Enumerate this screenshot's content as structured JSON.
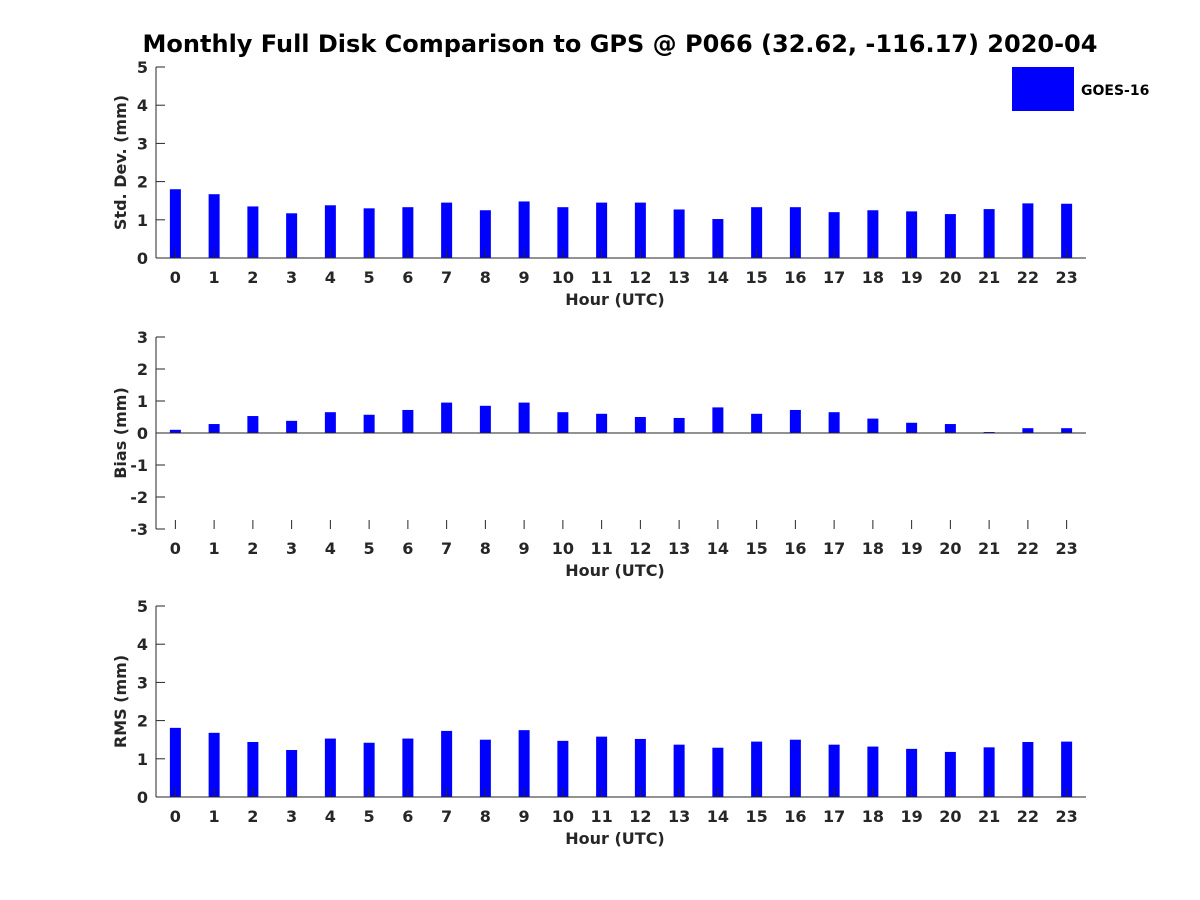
{
  "title": "Monthly Full Disk Comparison to GPS @ P066 (32.62, -116.17) 2020-04",
  "legend": {
    "label": "GOES-16",
    "color": "#0000ff"
  },
  "chart_data": [
    {
      "type": "bar",
      "xlabel": "Hour (UTC)",
      "ylabel": "Std. Dev. (mm)",
      "ylim": [
        0,
        5
      ],
      "yticks": [
        0,
        1,
        2,
        3,
        4,
        5
      ],
      "categories": [
        "0",
        "1",
        "2",
        "3",
        "4",
        "5",
        "6",
        "7",
        "8",
        "9",
        "10",
        "11",
        "12",
        "13",
        "14",
        "15",
        "16",
        "17",
        "18",
        "19",
        "20",
        "21",
        "22",
        "23"
      ],
      "series": [
        {
          "name": "GOES-16",
          "color": "#0000ff",
          "values": [
            1.8,
            1.67,
            1.35,
            1.17,
            1.38,
            1.3,
            1.33,
            1.45,
            1.25,
            1.48,
            1.33,
            1.45,
            1.45,
            1.27,
            1.02,
            1.33,
            1.33,
            1.2,
            1.25,
            1.22,
            1.15,
            1.28,
            1.43,
            1.42
          ]
        }
      ],
      "grid": false
    },
    {
      "type": "bar",
      "xlabel": "Hour (UTC)",
      "ylabel": "Bias (mm)",
      "ylim": [
        -3,
        3
      ],
      "yticks": [
        -3,
        -2,
        -1,
        0,
        1,
        2,
        3
      ],
      "categories": [
        "0",
        "1",
        "2",
        "3",
        "4",
        "5",
        "6",
        "7",
        "8",
        "9",
        "10",
        "11",
        "12",
        "13",
        "14",
        "15",
        "16",
        "17",
        "18",
        "19",
        "20",
        "21",
        "22",
        "23"
      ],
      "series": [
        {
          "name": "GOES-16",
          "color": "#0000ff",
          "values": [
            0.1,
            0.28,
            0.53,
            0.38,
            0.65,
            0.57,
            0.72,
            0.95,
            0.85,
            0.95,
            0.65,
            0.6,
            0.5,
            0.47,
            0.8,
            0.6,
            0.72,
            0.65,
            0.45,
            0.32,
            0.28,
            0.03,
            0.15,
            0.15
          ]
        }
      ],
      "grid": false
    },
    {
      "type": "bar",
      "xlabel": "Hour (UTC)",
      "ylabel": "RMS (mm)",
      "ylim": [
        0,
        5
      ],
      "yticks": [
        0,
        1,
        2,
        3,
        4,
        5
      ],
      "categories": [
        "0",
        "1",
        "2",
        "3",
        "4",
        "5",
        "6",
        "7",
        "8",
        "9",
        "10",
        "11",
        "12",
        "13",
        "14",
        "15",
        "16",
        "17",
        "18",
        "19",
        "20",
        "21",
        "22",
        "23"
      ],
      "series": [
        {
          "name": "GOES-16",
          "color": "#0000ff",
          "values": [
            1.81,
            1.68,
            1.44,
            1.23,
            1.53,
            1.42,
            1.53,
            1.73,
            1.5,
            1.75,
            1.47,
            1.58,
            1.52,
            1.37,
            1.29,
            1.45,
            1.5,
            1.37,
            1.32,
            1.26,
            1.18,
            1.3,
            1.44,
            1.45
          ]
        }
      ],
      "grid": false
    }
  ]
}
